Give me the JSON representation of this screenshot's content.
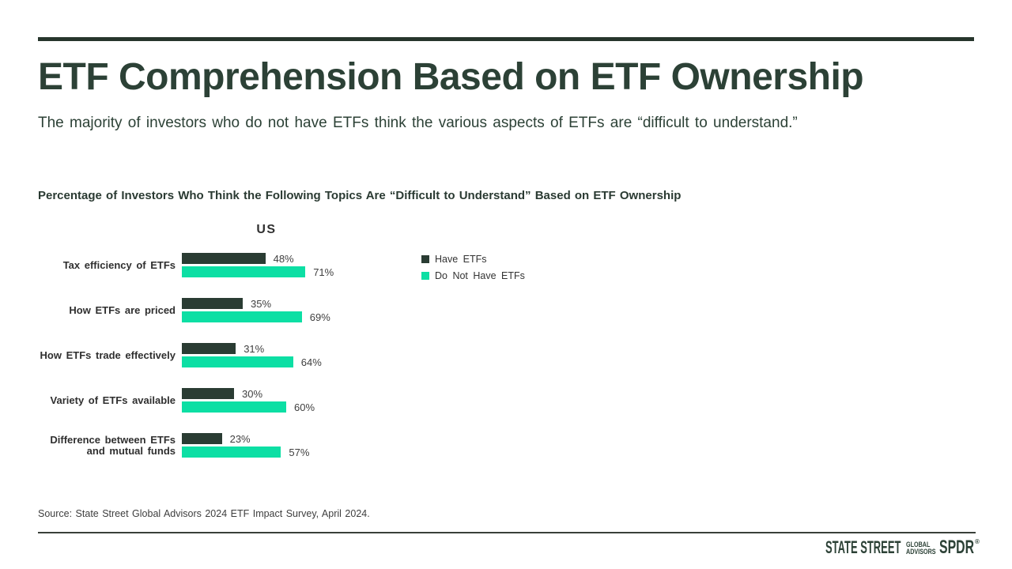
{
  "page": {
    "title": "ETF Comprehension Based on ETF Ownership",
    "subtitle": "The majority of investors who do not have ETFs think the various aspects of ETFs are “difficult to understand.”"
  },
  "chart": {
    "heading": "Percentage of Investors Who Think the Following Topics Are “Difficult to Understand” Based on ETF Ownership",
    "region_label": "US"
  },
  "chart_data": {
    "type": "bar",
    "orientation": "horizontal",
    "title": "Percentage of Investors Who Think the Following Topics Are “Difficult to Understand” Based on ETF Ownership",
    "group_header": "US",
    "categories": [
      "Tax efficiency of ETFs",
      "How ETFs are priced",
      "How ETFs trade effectively",
      "Variety of ETFs available",
      "Difference between ETFs and mutual funds"
    ],
    "series": [
      {
        "name": "Have ETFs",
        "color": "#2a3c33",
        "values": [
          48,
          35,
          31,
          30,
          23
        ]
      },
      {
        "name": "Do Not Have ETFs",
        "color": "#0cdfa4",
        "values": [
          71,
          69,
          64,
          60,
          57
        ]
      }
    ],
    "value_suffix": "%",
    "xlim": [
      0,
      100
    ],
    "grid": false,
    "legend_position": "right",
    "data_labels": true
  },
  "footer": {
    "source": "Source: State Street Global Advisors 2024 ETF Impact Survey, April 2024.",
    "logo": {
      "state_street": "STATE STREET",
      "global": "GLOBAL",
      "advisors": "ADVISORS",
      "spdr": "SPDR",
      "registered": "®"
    }
  },
  "colors": {
    "accent_dark_green": "#2c4136",
    "rule_dark": "#26352c",
    "bar_have_etfs": "#2a3c33",
    "bar_do_not_have_etfs": "#0cdfa4",
    "background": "#ffffff"
  }
}
